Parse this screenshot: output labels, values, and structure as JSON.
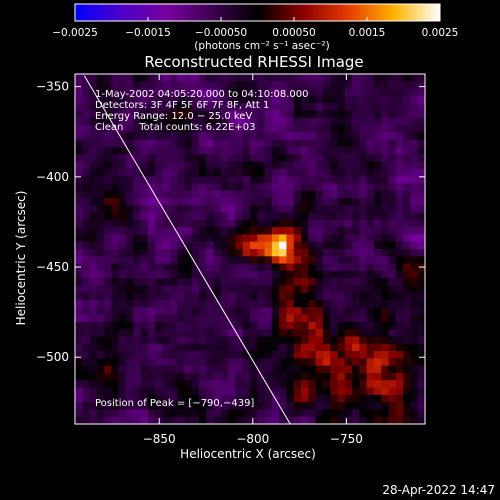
{
  "chart_data": {
    "type": "heatmap",
    "title": "Reconstructed RHESSI Image",
    "xlabel": "Heliocentric X (arcsec)",
    "ylabel": "Heliocentric Y (arcsec)",
    "xlim": [
      -895,
      -708
    ],
    "ylim": [
      -537,
      -343
    ],
    "x_ticks": [
      -850,
      -800,
      -750
    ],
    "x_tick_labels": [
      "−850",
      "−800",
      "−750"
    ],
    "y_ticks": [
      -350,
      -400,
      -450,
      -500
    ],
    "y_tick_labels": [
      "−350",
      "−400",
      "−450",
      "−500"
    ],
    "colorbar": {
      "range": [
        -0.0025,
        0.0025
      ],
      "ticks": [
        -0.0025,
        -0.0015,
        -0.0005,
        0.0005,
        0.0015,
        0.0025
      ],
      "tick_labels": [
        "−0.0025",
        "−0.0015",
        "−0.00050",
        "0.00050",
        "0.0015",
        "0.0025"
      ],
      "unit_label": "(photons cm⁻² s⁻¹ asec⁻²)",
      "colors": [
        "#0000ff",
        "#4b00c8",
        "#7800a0",
        "#3c0050",
        "#000000",
        "#8c0000",
        "#e63c00",
        "#ffb400",
        "#ffffff"
      ]
    },
    "annotations": [
      "1-May-2002 04:05:20.000 to 04:10:08.000",
      "Detectors: 3F 4F 5F 6F 7F 8F, Att 1",
      "Energy Range: 12.0 − 25.0 keV",
      "Clean     Total counts: 6.22E+03"
    ],
    "peak_label": "Position of Peak = [−790,−439]",
    "peak": [
      -790,
      -439
    ],
    "limb_line": [
      [
        -890,
        -344
      ],
      [
        -780,
        -537
      ]
    ],
    "grid": false,
    "sources": [
      {
        "x": -790,
        "y": -439,
        "sx": 10,
        "sy": 6,
        "amp": 0.0026
      },
      {
        "x": -775,
        "y": -465,
        "sx": 10,
        "sy": 28,
        "amp": 0.0009
      },
      {
        "x": -760,
        "y": -505,
        "sx": 22,
        "sy": 22,
        "amp": 0.0007
      },
      {
        "x": -730,
        "y": -505,
        "sx": 14,
        "sy": 18,
        "amp": 0.0008
      },
      {
        "x": -720,
        "y": -455,
        "sx": 10,
        "sy": 12,
        "amp": 0.0004
      },
      {
        "x": -842,
        "y": -525,
        "sx": 10,
        "sy": 7,
        "amp": 0.0005
      },
      {
        "x": -878,
        "y": -415,
        "sx": 10,
        "sy": 10,
        "amp": 0.0004
      },
      {
        "x": -880,
        "y": -505,
        "sx": 12,
        "sy": 12,
        "amp": 0.0006
      },
      {
        "x": -840,
        "y": -372,
        "sx": 8,
        "sy": 8,
        "amp": 0.0004
      }
    ]
  },
  "footer": {
    "timestamp": "28-Apr-2022 14:47"
  },
  "colors": {
    "background": "#000000",
    "text": "#ffffff",
    "limb": "#ffffff"
  }
}
